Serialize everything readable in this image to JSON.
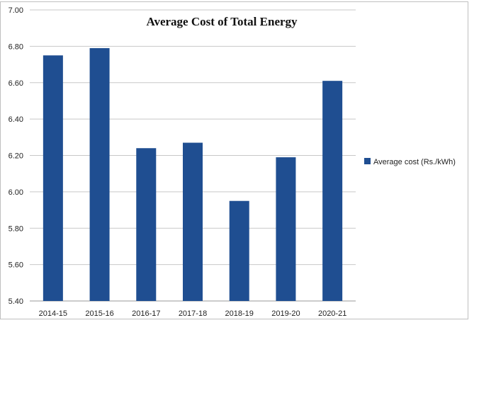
{
  "chart_data": {
    "type": "bar",
    "title": "Average Cost of Total Energy",
    "categories": [
      "2014-15",
      "2015-16",
      "2016-17",
      "2017-18",
      "2018-19",
      "2019-20",
      "2020-21"
    ],
    "series": [
      {
        "name": "Average cost (Rs./kWh)",
        "values": [
          6.75,
          6.79,
          6.24,
          6.27,
          5.95,
          6.19,
          6.61
        ],
        "color": "#1f4e91"
      }
    ],
    "ylim": [
      5.4,
      7.0
    ],
    "yticks": [
      "5.40",
      "5.60",
      "5.80",
      "6.00",
      "6.20",
      "6.40",
      "6.60",
      "6.80",
      "7.00"
    ],
    "xlabel": "",
    "ylabel": "",
    "grid": true,
    "legend": "right",
    "gridline_color": "#c8c8c8",
    "border_color": "#bfbfbf"
  }
}
